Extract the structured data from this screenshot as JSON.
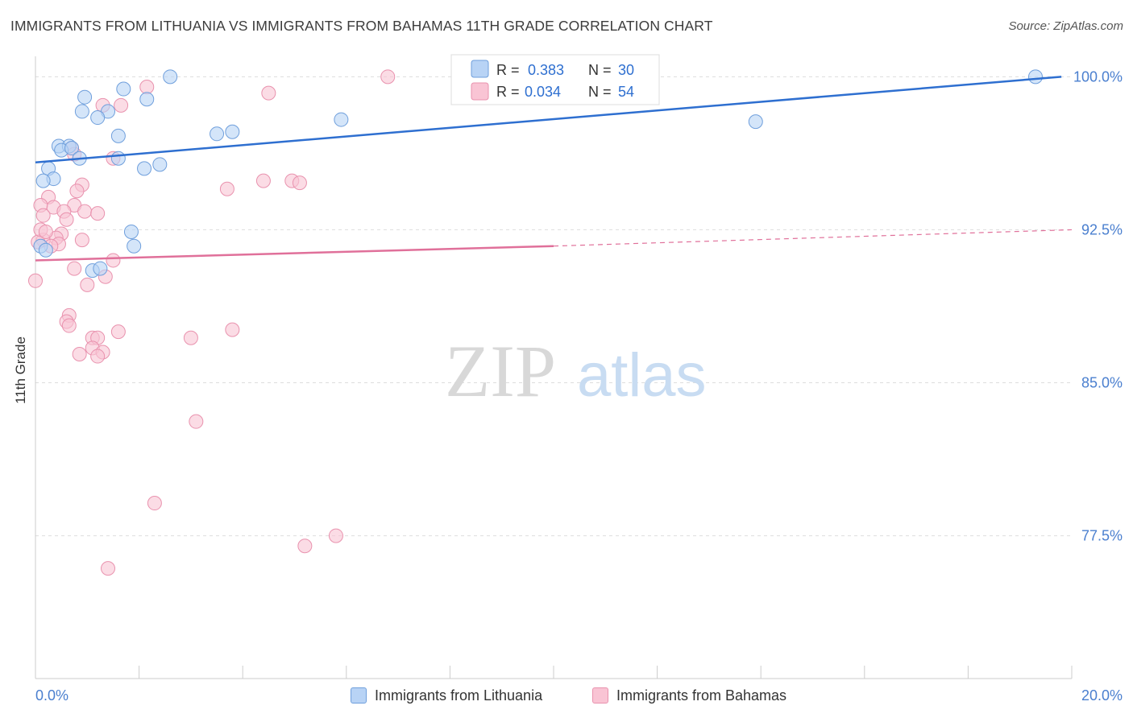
{
  "title": "IMMIGRANTS FROM LITHUANIA VS IMMIGRANTS FROM BAHAMAS 11TH GRADE CORRELATION CHART",
  "source": "Source: ZipAtlas.com",
  "watermark": {
    "zip": "ZIP",
    "atlas": "atlas"
  },
  "legend_box": {
    "rows": [
      {
        "r_label": "R =",
        "r_value": "0.383",
        "n_label": "N =",
        "n_value": "30"
      },
      {
        "r_label": "R =",
        "r_value": "0.034",
        "n_label": "N =",
        "n_value": "54"
      }
    ]
  },
  "bottom_legend": [
    "Immigrants from Lithuania",
    "Immigrants from Bahamas"
  ],
  "colors": {
    "blue_fill": "#b8d3f5",
    "blue_stroke": "#6f9fdc",
    "blue_line": "#2e6fd0",
    "pink_fill": "#f9c4d4",
    "pink_stroke": "#e992ae",
    "pink_line": "#e0709a",
    "axis_text": "#4a7fcf",
    "grid": "#dddddd"
  },
  "chart_data": {
    "type": "scatter",
    "title": "IMMIGRANTS FROM LITHUANIA VS IMMIGRANTS FROM BAHAMAS 11TH GRADE CORRELATION CHART",
    "xlabel": "",
    "ylabel": "11th Grade",
    "xlim": [
      0.0,
      20.0
    ],
    "ylim": [
      70.5,
      101.0
    ],
    "x_tick_labels": [
      "0.0%",
      "20.0%"
    ],
    "y_ticks": [
      77.5,
      85.0,
      92.5,
      100.0
    ],
    "y_tick_labels": [
      "77.5%",
      "85.0%",
      "92.5%",
      "100.0%"
    ],
    "series": [
      {
        "name": "Immigrants from Lithuania",
        "r": 0.383,
        "n": 30,
        "points": [
          [
            2.6,
            100.0
          ],
          [
            19.3,
            100.0
          ],
          [
            1.7,
            99.4
          ],
          [
            0.95,
            99.0
          ],
          [
            2.15,
            98.9
          ],
          [
            0.9,
            98.3
          ],
          [
            1.4,
            98.3
          ],
          [
            1.2,
            98.0
          ],
          [
            5.9,
            97.9
          ],
          [
            13.9,
            97.8
          ],
          [
            3.8,
            97.3
          ],
          [
            3.5,
            97.2
          ],
          [
            1.6,
            97.1
          ],
          [
            0.45,
            96.6
          ],
          [
            0.65,
            96.6
          ],
          [
            0.5,
            96.4
          ],
          [
            0.7,
            96.5
          ],
          [
            0.85,
            96.0
          ],
          [
            1.6,
            96.0
          ],
          [
            2.4,
            95.7
          ],
          [
            2.1,
            95.5
          ],
          [
            0.25,
            95.5
          ],
          [
            0.35,
            95.0
          ],
          [
            0.15,
            94.9
          ],
          [
            1.85,
            92.4
          ],
          [
            1.9,
            91.7
          ],
          [
            1.1,
            90.5
          ],
          [
            1.25,
            90.6
          ],
          [
            0.1,
            91.7
          ],
          [
            0.2,
            91.5
          ]
        ],
        "trend": {
          "x": [
            0.0,
            19.8
          ],
          "y": [
            95.8,
            100.0
          ]
        }
      },
      {
        "name": "Immigrants from Bahamas",
        "r": 0.034,
        "n": 54,
        "points": [
          [
            6.8,
            100.0
          ],
          [
            2.15,
            99.5
          ],
          [
            4.5,
            99.2
          ],
          [
            1.3,
            98.6
          ],
          [
            1.65,
            98.6
          ],
          [
            0.7,
            96.5
          ],
          [
            0.75,
            96.2
          ],
          [
            1.5,
            96.0
          ],
          [
            4.4,
            94.9
          ],
          [
            4.95,
            94.9
          ],
          [
            5.1,
            94.8
          ],
          [
            0.9,
            94.7
          ],
          [
            0.8,
            94.4
          ],
          [
            3.7,
            94.5
          ],
          [
            0.25,
            94.1
          ],
          [
            0.35,
            93.6
          ],
          [
            0.75,
            93.7
          ],
          [
            0.55,
            93.4
          ],
          [
            0.1,
            93.7
          ],
          [
            0.15,
            93.2
          ],
          [
            0.95,
            93.4
          ],
          [
            1.2,
            93.3
          ],
          [
            0.6,
            93.0
          ],
          [
            0.5,
            92.3
          ],
          [
            0.4,
            92.1
          ],
          [
            0.9,
            92.0
          ],
          [
            0.15,
            92.0
          ],
          [
            0.45,
            91.8
          ],
          [
            0.3,
            91.7
          ],
          [
            1.5,
            91.0
          ],
          [
            0.75,
            90.6
          ],
          [
            1.35,
            90.2
          ],
          [
            1.0,
            89.8
          ],
          [
            0.0,
            90.0
          ],
          [
            0.65,
            88.3
          ],
          [
            0.6,
            88.0
          ],
          [
            0.65,
            87.8
          ],
          [
            1.6,
            87.5
          ],
          [
            3.8,
            87.6
          ],
          [
            1.1,
            87.2
          ],
          [
            1.2,
            87.2
          ],
          [
            3.0,
            87.2
          ],
          [
            1.1,
            86.7
          ],
          [
            0.85,
            86.4
          ],
          [
            1.3,
            86.5
          ],
          [
            1.2,
            86.3
          ],
          [
            3.1,
            83.1
          ],
          [
            2.3,
            79.1
          ],
          [
            5.8,
            77.5
          ],
          [
            5.2,
            77.0
          ],
          [
            1.4,
            75.9
          ],
          [
            0.05,
            91.9
          ],
          [
            0.1,
            92.5
          ],
          [
            0.2,
            92.4
          ]
        ],
        "trend": {
          "x": [
            0.0,
            10.0,
            20.0
          ],
          "y": [
            91.0,
            91.7,
            92.5
          ]
        }
      }
    ]
  }
}
